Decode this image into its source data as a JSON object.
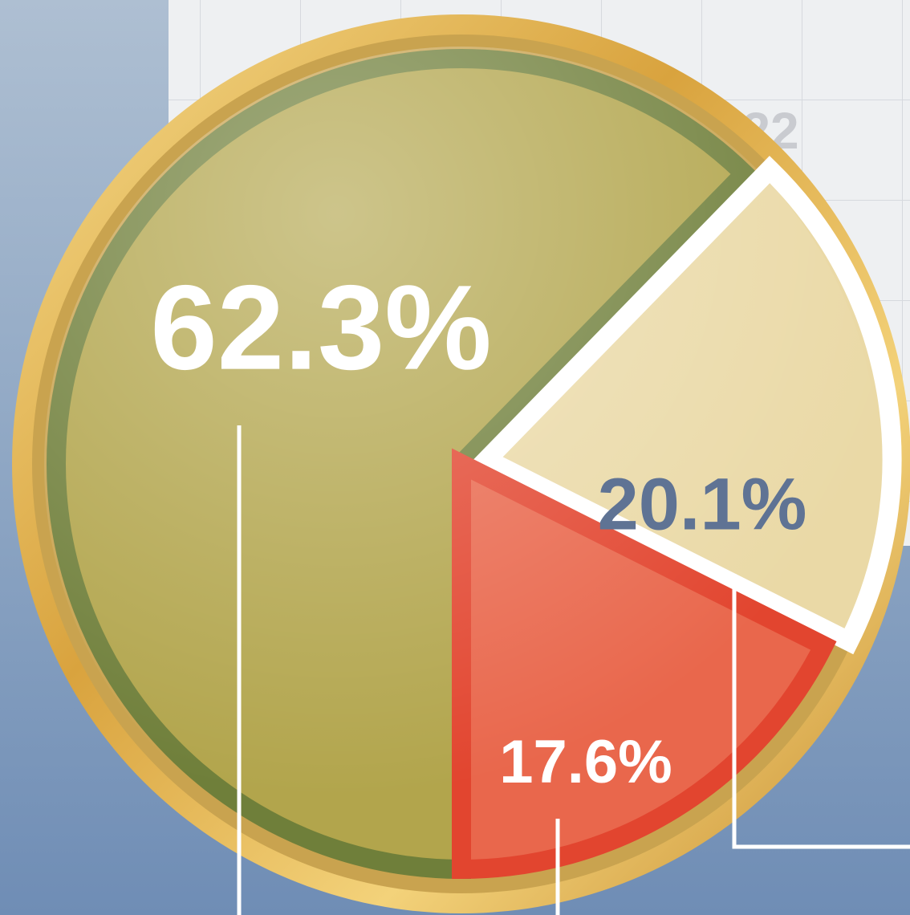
{
  "chart_data": {
    "type": "pie",
    "values": [
      62.3,
      20.1,
      17.6
    ],
    "value_labels": [
      "62.3%",
      "20.1%",
      "17.6%"
    ],
    "colors": [
      "#b2a54c",
      "#ead9a6",
      "#e9674c"
    ],
    "border_colors": [
      "#6f7f3a",
      "#ffffff",
      "#e2452f"
    ],
    "label_colors": [
      "#ffffff",
      "#5f7394",
      "#ffffff"
    ]
  },
  "background_label": "22"
}
